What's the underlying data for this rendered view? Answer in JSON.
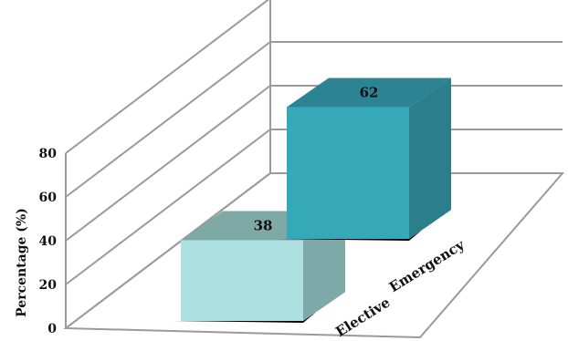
{
  "chart_data": {
    "type": "bar",
    "categories": [
      "Elective",
      "Emergency"
    ],
    "values": [
      38,
      62
    ],
    "title": "",
    "xlabel": "",
    "ylabel": "Percentage (%)",
    "ylim": [
      0,
      80
    ],
    "yticks": [
      0,
      20,
      40,
      60,
      80
    ],
    "grid": true,
    "three_d": true,
    "colors": {
      "Elective": {
        "front": "#ade0e0",
        "side": "#7daaa8",
        "top": "#7fa9a4"
      },
      "Emergency": {
        "front": "#35a9b8",
        "side": "#2a7f8a",
        "top": "#2b8393"
      },
      "grid": "#9a9a9a",
      "shadow": "#000000"
    }
  }
}
